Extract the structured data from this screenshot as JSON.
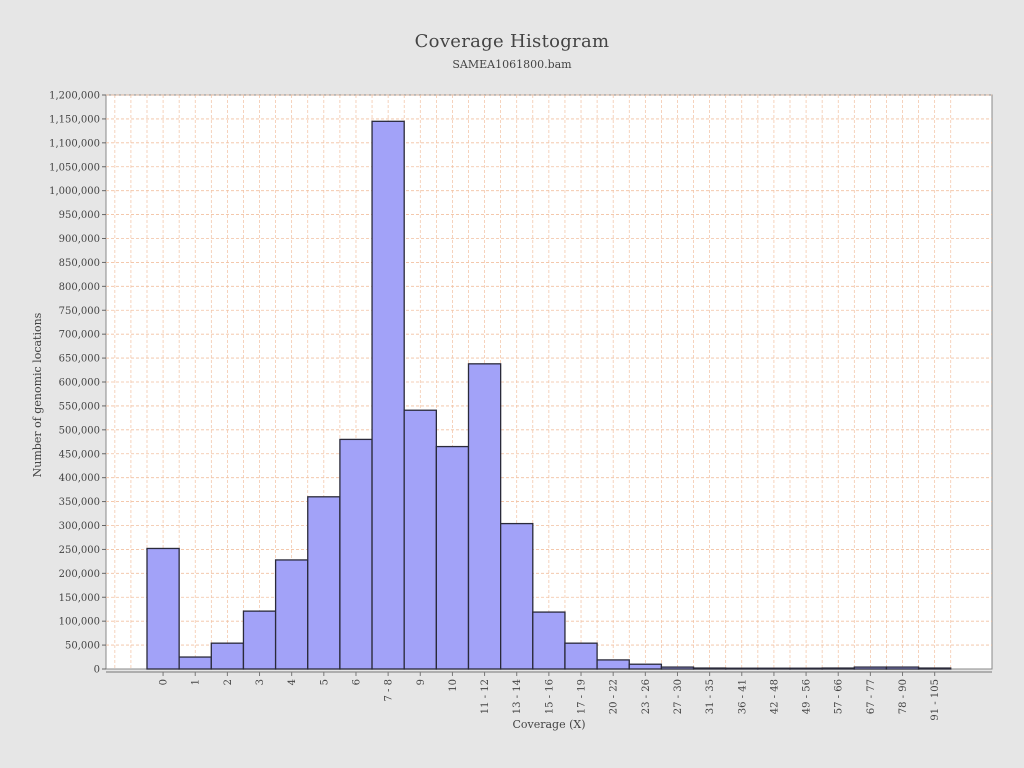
{
  "chart_data": {
    "type": "bar",
    "title": "Coverage Histogram",
    "subtitle": "SAMEA1061800.bam",
    "xlabel": "Coverage (X)",
    "ylabel": "Number of genomic locations",
    "ylim": [
      0,
      1200000
    ],
    "ytick_step": 50000,
    "grid": true,
    "categories": [
      "0",
      "1",
      "2",
      "3",
      "4",
      "5",
      "6",
      "7 - 8",
      "9",
      "10",
      "11 - 12",
      "13 - 14",
      "15 - 16",
      "17 - 19",
      "20 - 22",
      "23 - 26",
      "27 - 30",
      "31 - 35",
      "36 - 41",
      "42 - 48",
      "49 - 56",
      "57 - 66",
      "67 - 77",
      "78 - 90",
      "91 - 105"
    ],
    "values": [
      252000,
      25000,
      54000,
      121000,
      228000,
      360000,
      480000,
      1145000,
      541000,
      465000,
      638000,
      304000,
      119000,
      54000,
      19000,
      10000,
      4000,
      2000,
      1000,
      500,
      500,
      2000,
      4000,
      4000,
      2000
    ],
    "colors": {
      "bar_fill": "#a2a2f8",
      "bar_stroke": "#2a2a3a",
      "grid": "#f2c0a0",
      "plot_background": "#ffffff",
      "page_background": "#e6e6e6"
    }
  }
}
